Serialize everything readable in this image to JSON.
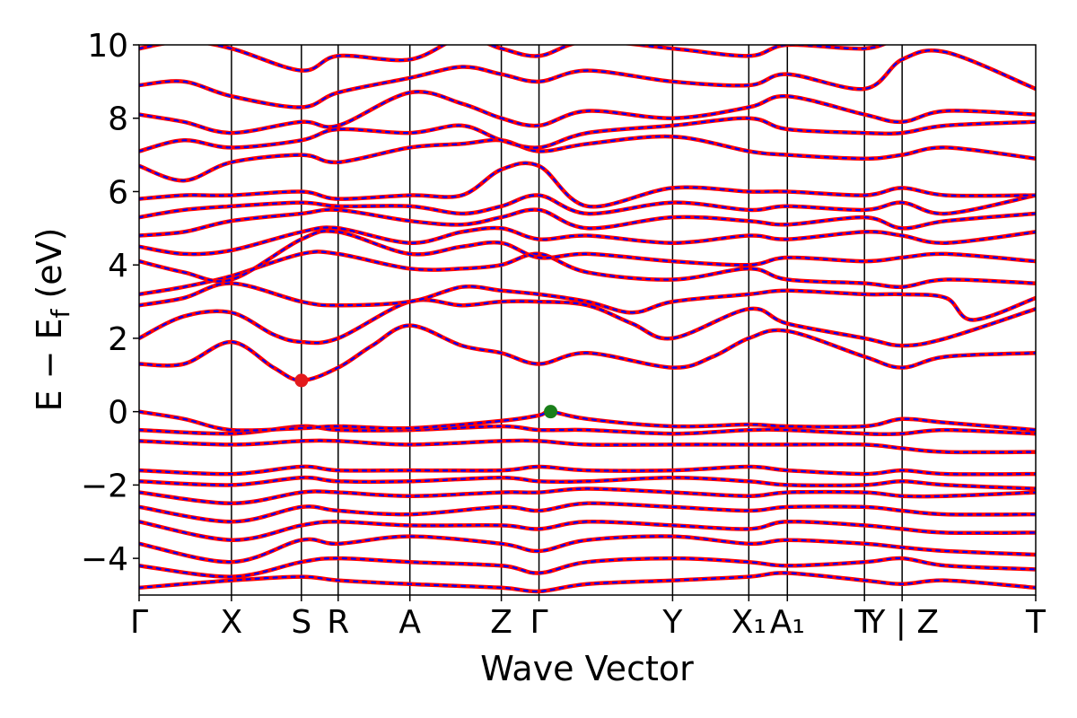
{
  "chart_data": {
    "type": "line",
    "title": "",
    "xlabel": "Wave Vector",
    "ylabel": {
      "main": "E − E",
      "sub": "f",
      "unit": " (eV)"
    },
    "ylim": [
      -5,
      10
    ],
    "yticks": [
      -4,
      -2,
      0,
      2,
      4,
      6,
      8,
      10
    ],
    "grid": false,
    "legend": "none",
    "kpath": {
      "x_range": [
        0,
        1
      ],
      "points": [
        {
          "label": "Γ",
          "x": 0.0
        },
        {
          "label": "X",
          "x": 0.103
        },
        {
          "label": "S",
          "x": 0.181
        },
        {
          "label": "R",
          "x": 0.222
        },
        {
          "label": "A",
          "x": 0.302
        },
        {
          "label": "Z",
          "x": 0.404
        },
        {
          "label": "Γ",
          "x": 0.446
        },
        {
          "label": "Y",
          "x": 0.595
        },
        {
          "label": "X₁",
          "x": 0.68
        },
        {
          "label": "A₁",
          "x": 0.723
        },
        {
          "label": "T",
          "x": 0.809
        },
        {
          "label": "Y | Z",
          "x": 0.851
        },
        {
          "label": "T",
          "x": 1.0
        }
      ]
    },
    "series": [
      {
        "color": "#ff0000",
        "width": 4.5,
        "dash": ""
      },
      {
        "color": "#0000ff",
        "width": 2.2,
        "dash": "4 6"
      }
    ],
    "markers": [
      {
        "kind": "cbm",
        "x": 0.181,
        "y": 0.85,
        "color": "#e31a1c"
      },
      {
        "kind": "vbm",
        "x": 0.459,
        "y": 0.0,
        "color": "#1a7f1a"
      }
    ],
    "bands": [
      {
        "k": [
          0,
          0.103,
          0.181,
          0.222,
          0.302,
          0.404,
          0.446,
          0.5,
          0.595,
          0.68,
          0.723,
          0.809,
          0.851,
          0.9,
          1
        ],
        "e": [
          -4.8,
          -4.6,
          -4.5,
          -4.6,
          -4.7,
          -4.8,
          -4.9,
          -4.7,
          -4.6,
          -4.5,
          -4.4,
          -4.6,
          -4.7,
          -4.6,
          -4.8
        ]
      },
      {
        "k": [
          0,
          0.103,
          0.181,
          0.222,
          0.302,
          0.404,
          0.446,
          0.5,
          0.595,
          0.68,
          0.723,
          0.809,
          0.851,
          0.9,
          1
        ],
        "e": [
          -4.2,
          -4.5,
          -4.1,
          -4.0,
          -4.1,
          -4.2,
          -4.4,
          -4.1,
          -4.0,
          -4.1,
          -4.2,
          -4.1,
          -4.0,
          -4.2,
          -4.3
        ]
      },
      {
        "k": [
          0,
          0.103,
          0.181,
          0.222,
          0.302,
          0.404,
          0.446,
          0.5,
          0.595,
          0.68,
          0.723,
          0.809,
          0.851,
          0.9,
          1
        ],
        "e": [
          -3.6,
          -4.1,
          -3.5,
          -3.6,
          -3.4,
          -3.6,
          -3.8,
          -3.5,
          -3.4,
          -3.6,
          -3.5,
          -3.6,
          -3.7,
          -3.8,
          -3.9
        ]
      },
      {
        "k": [
          0,
          0.103,
          0.181,
          0.222,
          0.302,
          0.404,
          0.446,
          0.5,
          0.595,
          0.68,
          0.723,
          0.809,
          0.851,
          0.9,
          1
        ],
        "e": [
          -3.0,
          -3.5,
          -3.1,
          -3.0,
          -3.1,
          -3.1,
          -3.2,
          -3.0,
          -3.1,
          -3.2,
          -3.0,
          -3.1,
          -3.2,
          -3.3,
          -3.3
        ]
      },
      {
        "k": [
          0,
          0.103,
          0.181,
          0.222,
          0.302,
          0.404,
          0.446,
          0.5,
          0.595,
          0.68,
          0.723,
          0.809,
          0.851,
          0.9,
          1
        ],
        "e": [
          -2.6,
          -3.0,
          -2.6,
          -2.7,
          -2.8,
          -2.6,
          -2.7,
          -2.5,
          -2.6,
          -2.7,
          -2.6,
          -2.6,
          -2.7,
          -2.8,
          -2.8
        ]
      },
      {
        "k": [
          0,
          0.103,
          0.181,
          0.222,
          0.302,
          0.404,
          0.446,
          0.5,
          0.595,
          0.68,
          0.723,
          0.809,
          0.851,
          0.9,
          1
        ],
        "e": [
          -2.2,
          -2.5,
          -2.2,
          -2.2,
          -2.3,
          -2.2,
          -2.2,
          -2.1,
          -2.2,
          -2.3,
          -2.2,
          -2.2,
          -2.3,
          -2.3,
          -2.2
        ]
      },
      {
        "k": [
          0,
          0.103,
          0.181,
          0.222,
          0.302,
          0.404,
          0.446,
          0.5,
          0.595,
          0.68,
          0.723,
          0.809,
          0.851,
          0.9,
          1
        ],
        "e": [
          -1.9,
          -2.0,
          -1.8,
          -1.9,
          -1.9,
          -1.8,
          -1.9,
          -1.9,
          -1.8,
          -1.9,
          -2.0,
          -2.0,
          -1.9,
          -2.0,
          -2.1
        ]
      },
      {
        "k": [
          0,
          0.103,
          0.181,
          0.222,
          0.302,
          0.404,
          0.446,
          0.5,
          0.595,
          0.68,
          0.723,
          0.809,
          0.851,
          0.9,
          1
        ],
        "e": [
          -1.6,
          -1.7,
          -1.5,
          -1.6,
          -1.6,
          -1.6,
          -1.5,
          -1.6,
          -1.6,
          -1.5,
          -1.6,
          -1.7,
          -1.6,
          -1.7,
          -1.7
        ]
      },
      {
        "k": [
          0,
          0.103,
          0.181,
          0.222,
          0.302,
          0.404,
          0.446,
          0.5,
          0.595,
          0.68,
          0.723,
          0.809,
          0.851,
          0.9,
          1
        ],
        "e": [
          -0.8,
          -0.9,
          -0.8,
          -0.8,
          -0.9,
          -0.8,
          -0.8,
          -0.9,
          -0.9,
          -0.9,
          -0.9,
          -0.9,
          -1.0,
          -1.1,
          -1.1
        ]
      },
      {
        "k": [
          0,
          0.103,
          0.181,
          0.222,
          0.302,
          0.404,
          0.446,
          0.5,
          0.595,
          0.68,
          0.723,
          0.809,
          0.851,
          0.9,
          1
        ],
        "e": [
          -0.5,
          -0.6,
          -0.4,
          -0.5,
          -0.5,
          -0.4,
          -0.5,
          -0.5,
          -0.6,
          -0.5,
          -0.5,
          -0.6,
          -0.6,
          -0.5,
          -0.6
        ]
      },
      {
        "k": [
          0,
          0.05,
          0.103,
          0.181,
          0.222,
          0.302,
          0.404,
          0.446,
          0.459,
          0.5,
          0.595,
          0.68,
          0.723,
          0.809,
          0.851,
          0.9,
          1
        ],
        "e": [
          0.0,
          -0.2,
          -0.5,
          -0.45,
          -0.4,
          -0.45,
          -0.25,
          -0.1,
          0.0,
          -0.2,
          -0.4,
          -0.35,
          -0.4,
          -0.4,
          -0.2,
          -0.3,
          -0.5
        ]
      },
      {
        "k": [
          0,
          0.05,
          0.103,
          0.15,
          0.181,
          0.222,
          0.26,
          0.302,
          0.36,
          0.404,
          0.446,
          0.5,
          0.595,
          0.64,
          0.68,
          0.723,
          0.809,
          0.851,
          0.9,
          1
        ],
        "e": [
          1.3,
          1.3,
          1.9,
          1.2,
          0.85,
          1.2,
          1.8,
          2.35,
          1.8,
          1.6,
          1.3,
          1.6,
          1.2,
          1.5,
          2.0,
          2.2,
          1.5,
          1.2,
          1.5,
          1.6
        ]
      },
      {
        "k": [
          0,
          0.05,
          0.103,
          0.15,
          0.181,
          0.222,
          0.302,
          0.36,
          0.404,
          0.446,
          0.5,
          0.55,
          0.595,
          0.68,
          0.723,
          0.809,
          0.851,
          0.9,
          1
        ],
        "e": [
          2.0,
          2.6,
          2.7,
          2.1,
          1.9,
          2.0,
          3.0,
          2.9,
          3.0,
          3.0,
          2.9,
          2.4,
          2.0,
          2.8,
          2.4,
          2.0,
          1.8,
          2.0,
          2.8
        ]
      },
      {
        "k": [
          0,
          0.05,
          0.103,
          0.181,
          0.222,
          0.302,
          0.36,
          0.404,
          0.446,
          0.5,
          0.55,
          0.595,
          0.68,
          0.723,
          0.809,
          0.851,
          0.9,
          0.93,
          1
        ],
        "e": [
          2.9,
          3.1,
          3.5,
          3.0,
          2.9,
          3.0,
          3.4,
          3.3,
          3.2,
          3.0,
          2.7,
          3.0,
          3.2,
          3.3,
          3.2,
          3.2,
          3.1,
          2.5,
          3.1
        ]
      },
      {
        "k": [
          0,
          0.05,
          0.103,
          0.181,
          0.222,
          0.302,
          0.36,
          0.404,
          0.446,
          0.5,
          0.595,
          0.68,
          0.723,
          0.809,
          0.851,
          0.9,
          1
        ],
        "e": [
          3.2,
          3.4,
          3.7,
          4.3,
          4.3,
          3.9,
          3.9,
          4.0,
          4.3,
          3.8,
          3.6,
          3.9,
          3.6,
          3.5,
          3.4,
          3.6,
          3.5
        ]
      },
      {
        "k": [
          0,
          0.05,
          0.103,
          0.181,
          0.222,
          0.302,
          0.36,
          0.404,
          0.446,
          0.5,
          0.595,
          0.68,
          0.723,
          0.809,
          0.851,
          0.9,
          1
        ],
        "e": [
          4.1,
          3.8,
          3.6,
          4.7,
          4.9,
          4.3,
          4.5,
          4.6,
          4.2,
          4.3,
          4.1,
          4.0,
          4.2,
          4.1,
          4.2,
          4.3,
          4.1
        ]
      },
      {
        "k": [
          0,
          0.05,
          0.103,
          0.181,
          0.222,
          0.302,
          0.36,
          0.404,
          0.446,
          0.5,
          0.595,
          0.68,
          0.723,
          0.809,
          0.851,
          0.9,
          1
        ],
        "e": [
          4.5,
          4.3,
          4.4,
          4.9,
          5.0,
          4.6,
          4.9,
          5.0,
          4.7,
          4.8,
          4.6,
          4.8,
          4.7,
          4.9,
          4.8,
          4.6,
          4.9
        ]
      },
      {
        "k": [
          0,
          0.05,
          0.103,
          0.181,
          0.222,
          0.302,
          0.36,
          0.404,
          0.446,
          0.5,
          0.595,
          0.68,
          0.723,
          0.809,
          0.851,
          0.9,
          1
        ],
        "e": [
          4.8,
          4.9,
          5.2,
          5.4,
          5.5,
          5.2,
          5.1,
          5.3,
          5.5,
          5.0,
          5.3,
          5.2,
          5.1,
          5.3,
          5.0,
          5.2,
          5.4
        ]
      },
      {
        "k": [
          0,
          0.05,
          0.103,
          0.181,
          0.222,
          0.302,
          0.36,
          0.404,
          0.446,
          0.5,
          0.595,
          0.68,
          0.723,
          0.809,
          0.851,
          0.9,
          1
        ],
        "e": [
          5.3,
          5.5,
          5.6,
          5.7,
          5.6,
          5.6,
          5.4,
          5.6,
          5.9,
          5.4,
          5.7,
          5.5,
          5.6,
          5.5,
          5.7,
          5.4,
          5.9
        ]
      },
      {
        "k": [
          0,
          0.05,
          0.103,
          0.181,
          0.222,
          0.302,
          0.36,
          0.404,
          0.446,
          0.5,
          0.595,
          0.68,
          0.723,
          0.809,
          0.851,
          0.9,
          1
        ],
        "e": [
          5.8,
          5.9,
          5.9,
          6.0,
          5.8,
          5.9,
          5.9,
          6.6,
          6.7,
          5.6,
          6.1,
          6.0,
          6.0,
          5.9,
          6.1,
          5.9,
          5.9
        ]
      },
      {
        "k": [
          0,
          0.05,
          0.103,
          0.181,
          0.222,
          0.302,
          0.36,
          0.404,
          0.446,
          0.5,
          0.595,
          0.68,
          0.723,
          0.809,
          0.851,
          0.9,
          1
        ],
        "e": [
          6.7,
          6.3,
          6.8,
          7.0,
          6.8,
          7.2,
          7.3,
          7.4,
          7.1,
          7.3,
          7.5,
          7.1,
          7.0,
          6.9,
          7.0,
          7.2,
          6.9
        ]
      },
      {
        "k": [
          0,
          0.05,
          0.103,
          0.181,
          0.222,
          0.302,
          0.36,
          0.404,
          0.446,
          0.5,
          0.595,
          0.68,
          0.723,
          0.809,
          0.851,
          0.9,
          1
        ],
        "e": [
          7.1,
          7.4,
          7.2,
          7.4,
          7.7,
          7.6,
          7.8,
          7.4,
          7.2,
          7.6,
          7.8,
          8.0,
          7.7,
          7.6,
          7.6,
          7.8,
          7.9
        ]
      },
      {
        "k": [
          0,
          0.05,
          0.103,
          0.181,
          0.222,
          0.302,
          0.36,
          0.404,
          0.446,
          0.5,
          0.595,
          0.68,
          0.723,
          0.809,
          0.851,
          0.9,
          1
        ],
        "e": [
          8.1,
          7.9,
          7.6,
          7.9,
          7.8,
          8.7,
          8.4,
          8.0,
          7.8,
          8.2,
          8.0,
          8.3,
          8.6,
          8.1,
          7.9,
          8.2,
          8.1
        ]
      },
      {
        "k": [
          0,
          0.05,
          0.103,
          0.181,
          0.222,
          0.302,
          0.36,
          0.404,
          0.446,
          0.5,
          0.595,
          0.68,
          0.723,
          0.809,
          0.851,
          0.9,
          1
        ],
        "e": [
          8.9,
          9.0,
          8.6,
          8.3,
          8.7,
          9.1,
          9.4,
          9.2,
          9.0,
          9.3,
          9.0,
          8.9,
          9.2,
          8.8,
          9.6,
          9.8,
          8.8
        ]
      },
      {
        "k": [
          0,
          0.05,
          0.103,
          0.181,
          0.222,
          0.302,
          0.36,
          0.404,
          0.446,
          0.5,
          0.595,
          0.68,
          0.723,
          0.809,
          0.851,
          0.9,
          1
        ],
        "e": [
          9.9,
          10.1,
          9.9,
          9.3,
          9.7,
          9.6,
          10.2,
          9.9,
          9.7,
          10.1,
          9.9,
          9.7,
          10.0,
          9.9,
          10.2,
          10.3,
          10.1
        ]
      }
    ]
  }
}
